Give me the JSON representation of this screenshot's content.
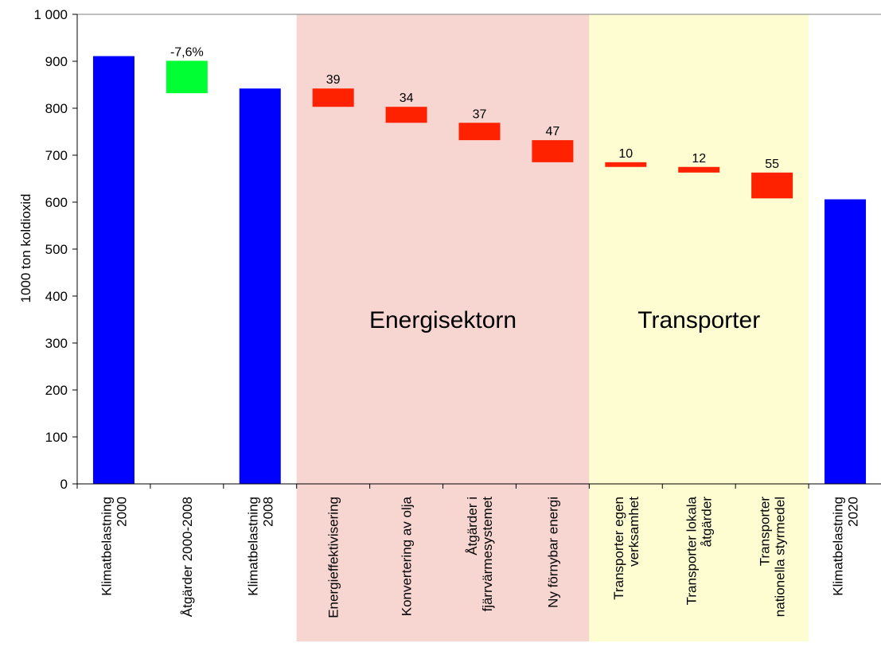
{
  "chart_data": {
    "type": "bar",
    "ylabel": "1000 ton koldioxid",
    "ylim": [
      0,
      1000
    ],
    "yticks": [
      0,
      100,
      200,
      300,
      400,
      500,
      600,
      700,
      800,
      900,
      1000
    ],
    "ytick_labels": [
      "0",
      "100",
      "200",
      "300",
      "400",
      "500",
      "600",
      "700",
      "800",
      "900",
      "1 000"
    ],
    "grid": false,
    "categories": [
      [
        "Klimatbelastning",
        "2000"
      ],
      [
        "Åtgärder 2000-2008"
      ],
      [
        "Klimatbelastning",
        "2008"
      ],
      [
        "Energieffektivisering"
      ],
      [
        "Konvertering av olja"
      ],
      [
        "Åtgärder i",
        "fjärrvärmesystemet"
      ],
      [
        "Ny förnybar energi"
      ],
      [
        "Transporter egen",
        "verksamhet"
      ],
      [
        "Transporter lokala",
        "åtgärder"
      ],
      [
        "Transporter",
        "nationella styrmedel"
      ],
      [
        "Klimatbelastning",
        "2020"
      ]
    ],
    "bars": [
      {
        "kind": "total",
        "bottom": 0,
        "top": 911,
        "label": ""
      },
      {
        "kind": "reduction",
        "bottom": 832,
        "top": 901,
        "label": "-7,6%"
      },
      {
        "kind": "total",
        "bottom": 0,
        "top": 842,
        "label": ""
      },
      {
        "kind": "step",
        "bottom": 803,
        "top": 842,
        "label": "39"
      },
      {
        "kind": "step",
        "bottom": 769,
        "top": 803,
        "label": "34"
      },
      {
        "kind": "step",
        "bottom": 732,
        "top": 769,
        "label": "37"
      },
      {
        "kind": "step",
        "bottom": 685,
        "top": 732,
        "label": "47"
      },
      {
        "kind": "step",
        "bottom": 675,
        "top": 685,
        "label": "10"
      },
      {
        "kind": "step",
        "bottom": 663,
        "top": 675,
        "label": "12"
      },
      {
        "kind": "step",
        "bottom": 608,
        "top": 663,
        "label": "55"
      },
      {
        "kind": "total",
        "bottom": 0,
        "top": 606,
        "label": ""
      }
    ],
    "regions": [
      {
        "name": "Energisektorn",
        "start_category": 3,
        "end_category": 6,
        "color": "#f7d6d2"
      },
      {
        "name": "Transporter",
        "start_category": 7,
        "end_category": 9,
        "color": "#fefdd2"
      }
    ],
    "colors": {
      "total": "#0000ff",
      "reduction": "#00ff33",
      "step": "#ff2200",
      "axis": "#000000"
    }
  }
}
